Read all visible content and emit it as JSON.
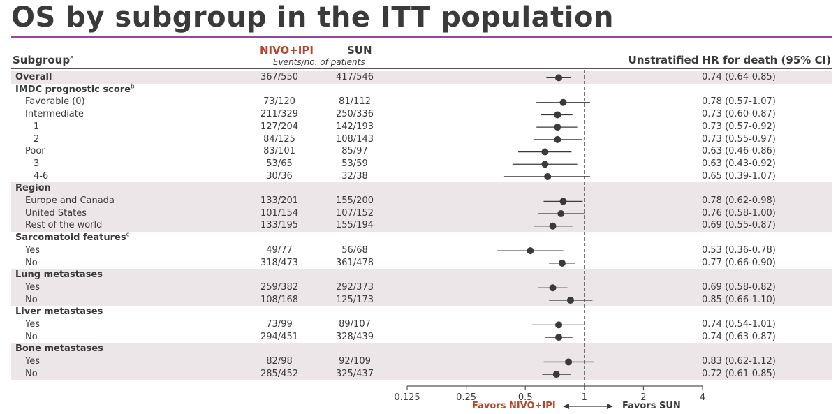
{
  "title": "OS by subgroup in the ITT population",
  "header": {
    "subgroup": "Subgroup",
    "subgroup_sup": "a",
    "nivo": "NIVO+IPI",
    "sun": "SUN",
    "events": "Events/no. of patients",
    "hr": "Unstratified HR for death (95% CI)"
  },
  "favors": {
    "left": "Favors NIVO+IPI",
    "right": "Favors SUN"
  },
  "colors": {
    "nivo": "#b2472e",
    "accent_rule": "#8e4a9e",
    "band": "#ede6e8",
    "marker": "#3a3a3a"
  },
  "chart_data": {
    "type": "forest",
    "xscale": "log2",
    "xlim": [
      0.125,
      4
    ],
    "reference_line": 1,
    "x_ticks": [
      "0.125",
      "0.25",
      "0.5",
      "1",
      "2",
      "4"
    ],
    "rows": [
      {
        "label": "Overall",
        "level": 0,
        "bold": true,
        "nivo": "367/550",
        "sun": "417/546",
        "hr": 0.74,
        "lo": 0.64,
        "hi": 0.85,
        "hr_text": "0.74 (0.64-0.85)"
      },
      {
        "label": "IMDC prognostic score",
        "sup": "b",
        "level": 0,
        "bold": true
      },
      {
        "label": "Favorable (0)",
        "level": 1,
        "nivo": "73/120",
        "sun": "81/112",
        "hr": 0.78,
        "lo": 0.57,
        "hi": 1.07,
        "hr_text": "0.78 (0.57-1.07)"
      },
      {
        "label": "Intermediate",
        "level": 1,
        "nivo": "211/329",
        "sun": "250/336",
        "hr": 0.73,
        "lo": 0.6,
        "hi": 0.87,
        "hr_text": "0.73 (0.60-0.87)"
      },
      {
        "label": "1",
        "level": 2,
        "nivo": "127/204",
        "sun": "142/193",
        "hr": 0.73,
        "lo": 0.57,
        "hi": 0.92,
        "hr_text": "0.73 (0.57-0.92)"
      },
      {
        "label": "2",
        "level": 2,
        "nivo": "84/125",
        "sun": "108/143",
        "hr": 0.73,
        "lo": 0.55,
        "hi": 0.97,
        "hr_text": "0.73 (0.55-0.97)"
      },
      {
        "label": "Poor",
        "level": 1,
        "nivo": "83/101",
        "sun": "85/97",
        "hr": 0.63,
        "lo": 0.46,
        "hi": 0.86,
        "hr_text": "0.63 (0.46-0.86)"
      },
      {
        "label": "3",
        "level": 2,
        "nivo": "53/65",
        "sun": "53/59",
        "hr": 0.63,
        "lo": 0.43,
        "hi": 0.92,
        "hr_text": "0.63 (0.43-0.92)"
      },
      {
        "label": "4-6",
        "level": 2,
        "nivo": "30/36",
        "sun": "32/38",
        "hr": 0.65,
        "lo": 0.39,
        "hi": 1.07,
        "hr_text": "0.65 (0.39-1.07)"
      },
      {
        "label": "Region",
        "level": 0,
        "bold": true
      },
      {
        "label": "Europe and Canada",
        "level": 1,
        "nivo": "133/201",
        "sun": "155/200",
        "hr": 0.78,
        "lo": 0.62,
        "hi": 0.98,
        "hr_text": "0.78 (0.62-0.98)"
      },
      {
        "label": "United States",
        "level": 1,
        "nivo": "101/154",
        "sun": "107/152",
        "hr": 0.76,
        "lo": 0.58,
        "hi": 1.0,
        "hr_text": "0.76 (0.58-1.00)"
      },
      {
        "label": "Rest of the world",
        "level": 1,
        "nivo": "133/195",
        "sun": "155/194",
        "hr": 0.69,
        "lo": 0.55,
        "hi": 0.87,
        "hr_text": "0.69 (0.55-0.87)"
      },
      {
        "label": "Sarcomatoid features",
        "sup": "c",
        "level": 0,
        "bold": true
      },
      {
        "label": "Yes",
        "level": 1,
        "nivo": "49/77",
        "sun": "56/68",
        "hr": 0.53,
        "lo": 0.36,
        "hi": 0.78,
        "hr_text": "0.53 (0.36-0.78)"
      },
      {
        "label": "No",
        "level": 1,
        "nivo": "318/473",
        "sun": "361/478",
        "hr": 0.77,
        "lo": 0.66,
        "hi": 0.9,
        "hr_text": "0.77 (0.66-0.90)"
      },
      {
        "label": "Lung metastases",
        "level": 0,
        "bold": true
      },
      {
        "label": "Yes",
        "level": 1,
        "nivo": "259/382",
        "sun": "292/373",
        "hr": 0.69,
        "lo": 0.58,
        "hi": 0.82,
        "hr_text": "0.69 (0.58-0.82)"
      },
      {
        "label": "No",
        "level": 1,
        "nivo": "108/168",
        "sun": "125/173",
        "hr": 0.85,
        "lo": 0.66,
        "hi": 1.1,
        "hr_text": "0.85 (0.66-1.10)"
      },
      {
        "label": "Liver metastases",
        "level": 0,
        "bold": true
      },
      {
        "label": "Yes",
        "level": 1,
        "nivo": "73/99",
        "sun": "89/107",
        "hr": 0.74,
        "lo": 0.54,
        "hi": 1.01,
        "hr_text": "0.74 (0.54-1.01)"
      },
      {
        "label": "No",
        "level": 1,
        "nivo": "294/451",
        "sun": "328/439",
        "hr": 0.74,
        "lo": 0.63,
        "hi": 0.87,
        "hr_text": "0.74 (0.63-0.87)"
      },
      {
        "label": "Bone metastases",
        "level": 0,
        "bold": true
      },
      {
        "label": "Yes",
        "level": 1,
        "nivo": "82/98",
        "sun": "92/109",
        "hr": 0.83,
        "lo": 0.62,
        "hi": 1.12,
        "hr_text": "0.83 (0.62-1.12)"
      },
      {
        "label": "No",
        "level": 1,
        "nivo": "285/452",
        "sun": "325/437",
        "hr": 0.72,
        "lo": 0.61,
        "hi": 0.85,
        "hr_text": "0.72 (0.61-0.85)"
      }
    ],
    "shaded_groups": [
      "Overall",
      "Region",
      "Lung metastases",
      "Bone metastases"
    ]
  }
}
